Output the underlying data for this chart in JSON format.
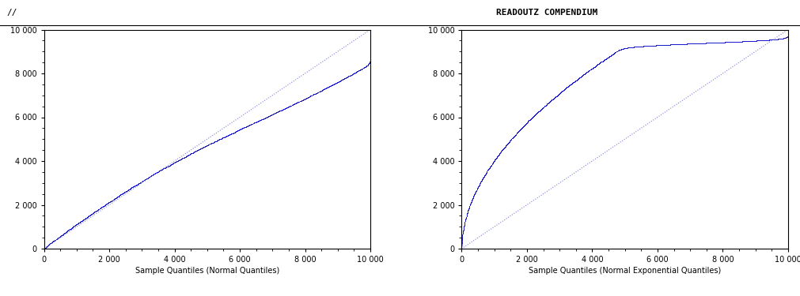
{
  "xlim": [
    0,
    10000
  ],
  "ylim": [
    0,
    10000
  ],
  "xticks_left": [
    0,
    2000,
    4000,
    6000,
    8000,
    10000
  ],
  "xticks_right": [
    0,
    2000,
    4000,
    6000,
    8000,
    10000
  ],
  "yticks": [
    0,
    2000,
    4000,
    6000,
    8000,
    10000
  ],
  "data_color": "#1a1acd",
  "ref_color": "#7070e0",
  "background_color": "#ffffff",
  "header_left_text": "//",
  "header_right_text": "READOUTZ COMPENDIUM",
  "xlabel_left": "Sample Quantiles (Normal Quantiles)",
  "xlabel_right": "Sample Quantiles (Normal Exponential Quantiles)"
}
